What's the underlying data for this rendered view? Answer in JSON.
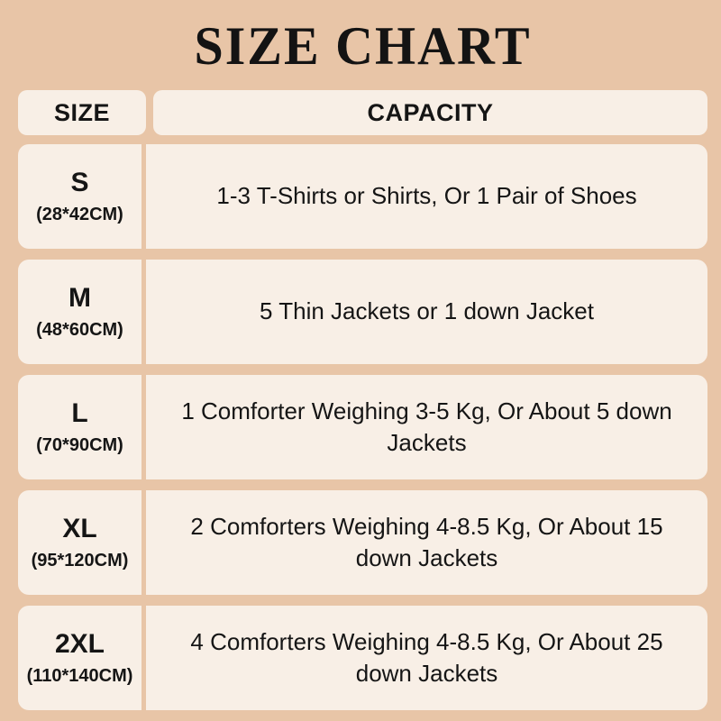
{
  "page": {
    "title": "SIZE CHART"
  },
  "colors": {
    "background": "#e8c5a7",
    "cell": "#f8efe6",
    "text": "#151515"
  },
  "table": {
    "headers": {
      "size": "SIZE",
      "capacity": "CAPACITY"
    },
    "rows": [
      {
        "size": "S",
        "dimensions": "(28*42CM)",
        "capacity": "1-3 T-Shirts or Shirts, Or 1 Pair of Shoes"
      },
      {
        "size": "M",
        "dimensions": "(48*60CM)",
        "capacity": "5 Thin Jackets or 1 down Jacket"
      },
      {
        "size": "L",
        "dimensions": "(70*90CM)",
        "capacity": "1 Comforter Weighing 3-5 Kg, Or About 5 down Jackets"
      },
      {
        "size": "XL",
        "dimensions": "(95*120CM)",
        "capacity": "2 Comforters Weighing 4-8.5 Kg, Or About 15 down Jackets"
      },
      {
        "size": "2XL",
        "dimensions": "(110*140CM)",
        "capacity": "4 Comforters Weighing 4-8.5 Kg, Or About 25 down Jackets"
      }
    ]
  },
  "chart_data": {
    "type": "table",
    "title": "SIZE CHART",
    "columns": [
      "SIZE",
      "CAPACITY"
    ],
    "rows": [
      [
        "S (28*42CM)",
        "1-3 T-Shirts or Shirts, Or 1 Pair of Shoes"
      ],
      [
        "M (48*60CM)",
        "5 Thin Jackets or 1 down Jacket"
      ],
      [
        "L (70*90CM)",
        "1 Comforter Weighing 3-5 Kg, Or About 5 down Jackets"
      ],
      [
        "XL (95*120CM)",
        "2 Comforters Weighing 4-8.5 Kg, Or About 15 down Jackets"
      ],
      [
        "2XL (110*140CM)",
        "4 Comforters Weighing 4-8.5 Kg, Or About 25 down Jackets"
      ]
    ]
  }
}
